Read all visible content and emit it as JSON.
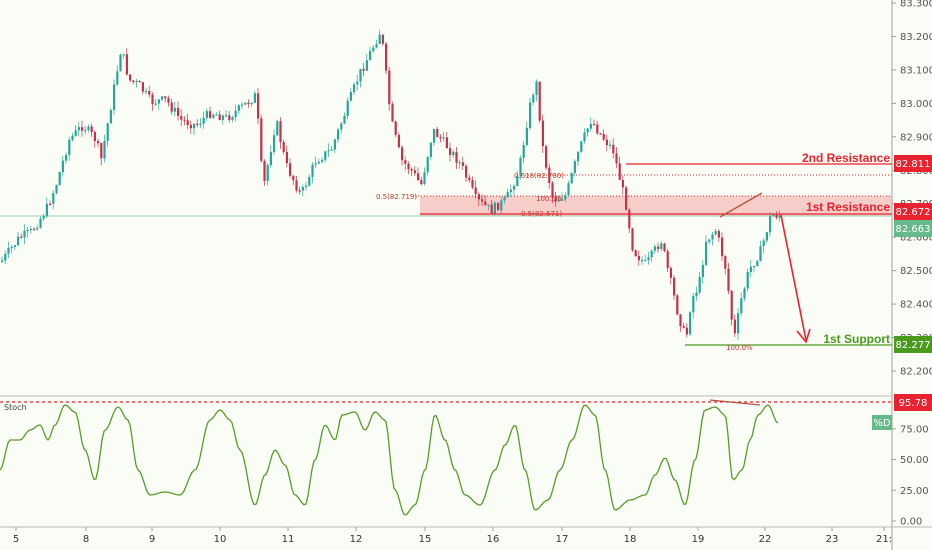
{
  "chart_data": {
    "type": "candlestick",
    "price_axis": {
      "ticks": [
        "83.300",
        "83.200",
        "83.100",
        "83.000",
        "82.900",
        "82.800",
        "82.700",
        "82.600",
        "82.500",
        "82.400",
        "82.300",
        "82.200"
      ],
      "range": [
        82.15,
        83.31
      ]
    },
    "x_axis": {
      "ticks": [
        "5",
        "8",
        "9",
        "10",
        "11",
        "12",
        "15",
        "16",
        "17",
        "18",
        "19",
        "22",
        "23",
        "21:"
      ]
    },
    "levels": {
      "resistance_2": {
        "label": "2nd Resistance",
        "value": "82.811",
        "color": "#e8222f"
      },
      "resistance_1": {
        "label": "1st Resistance",
        "value": "82.672",
        "color": "#e8222f"
      },
      "support_1": {
        "label": "1st Support",
        "value": "82.277",
        "color": "#4a9a1e"
      },
      "current": {
        "value": "82.663",
        "color": "#66b98a"
      }
    },
    "fib_annotations": [
      "0.618(82.780)",
      "100.0%",
      "0.5(82.719)",
      "0.5(82.671)",
      "100.0%"
    ],
    "stochastic": {
      "name": "Stoch",
      "ticks": [
        "75.00",
        "50.00",
        "25.00",
        "0.00"
      ],
      "range": [
        0,
        100
      ],
      "level_value": "95.78",
      "tag": "%D",
      "line_color": "#5a9a2c"
    },
    "candle_colors": {
      "up": "#26a69a",
      "down": "#c2324a"
    }
  }
}
